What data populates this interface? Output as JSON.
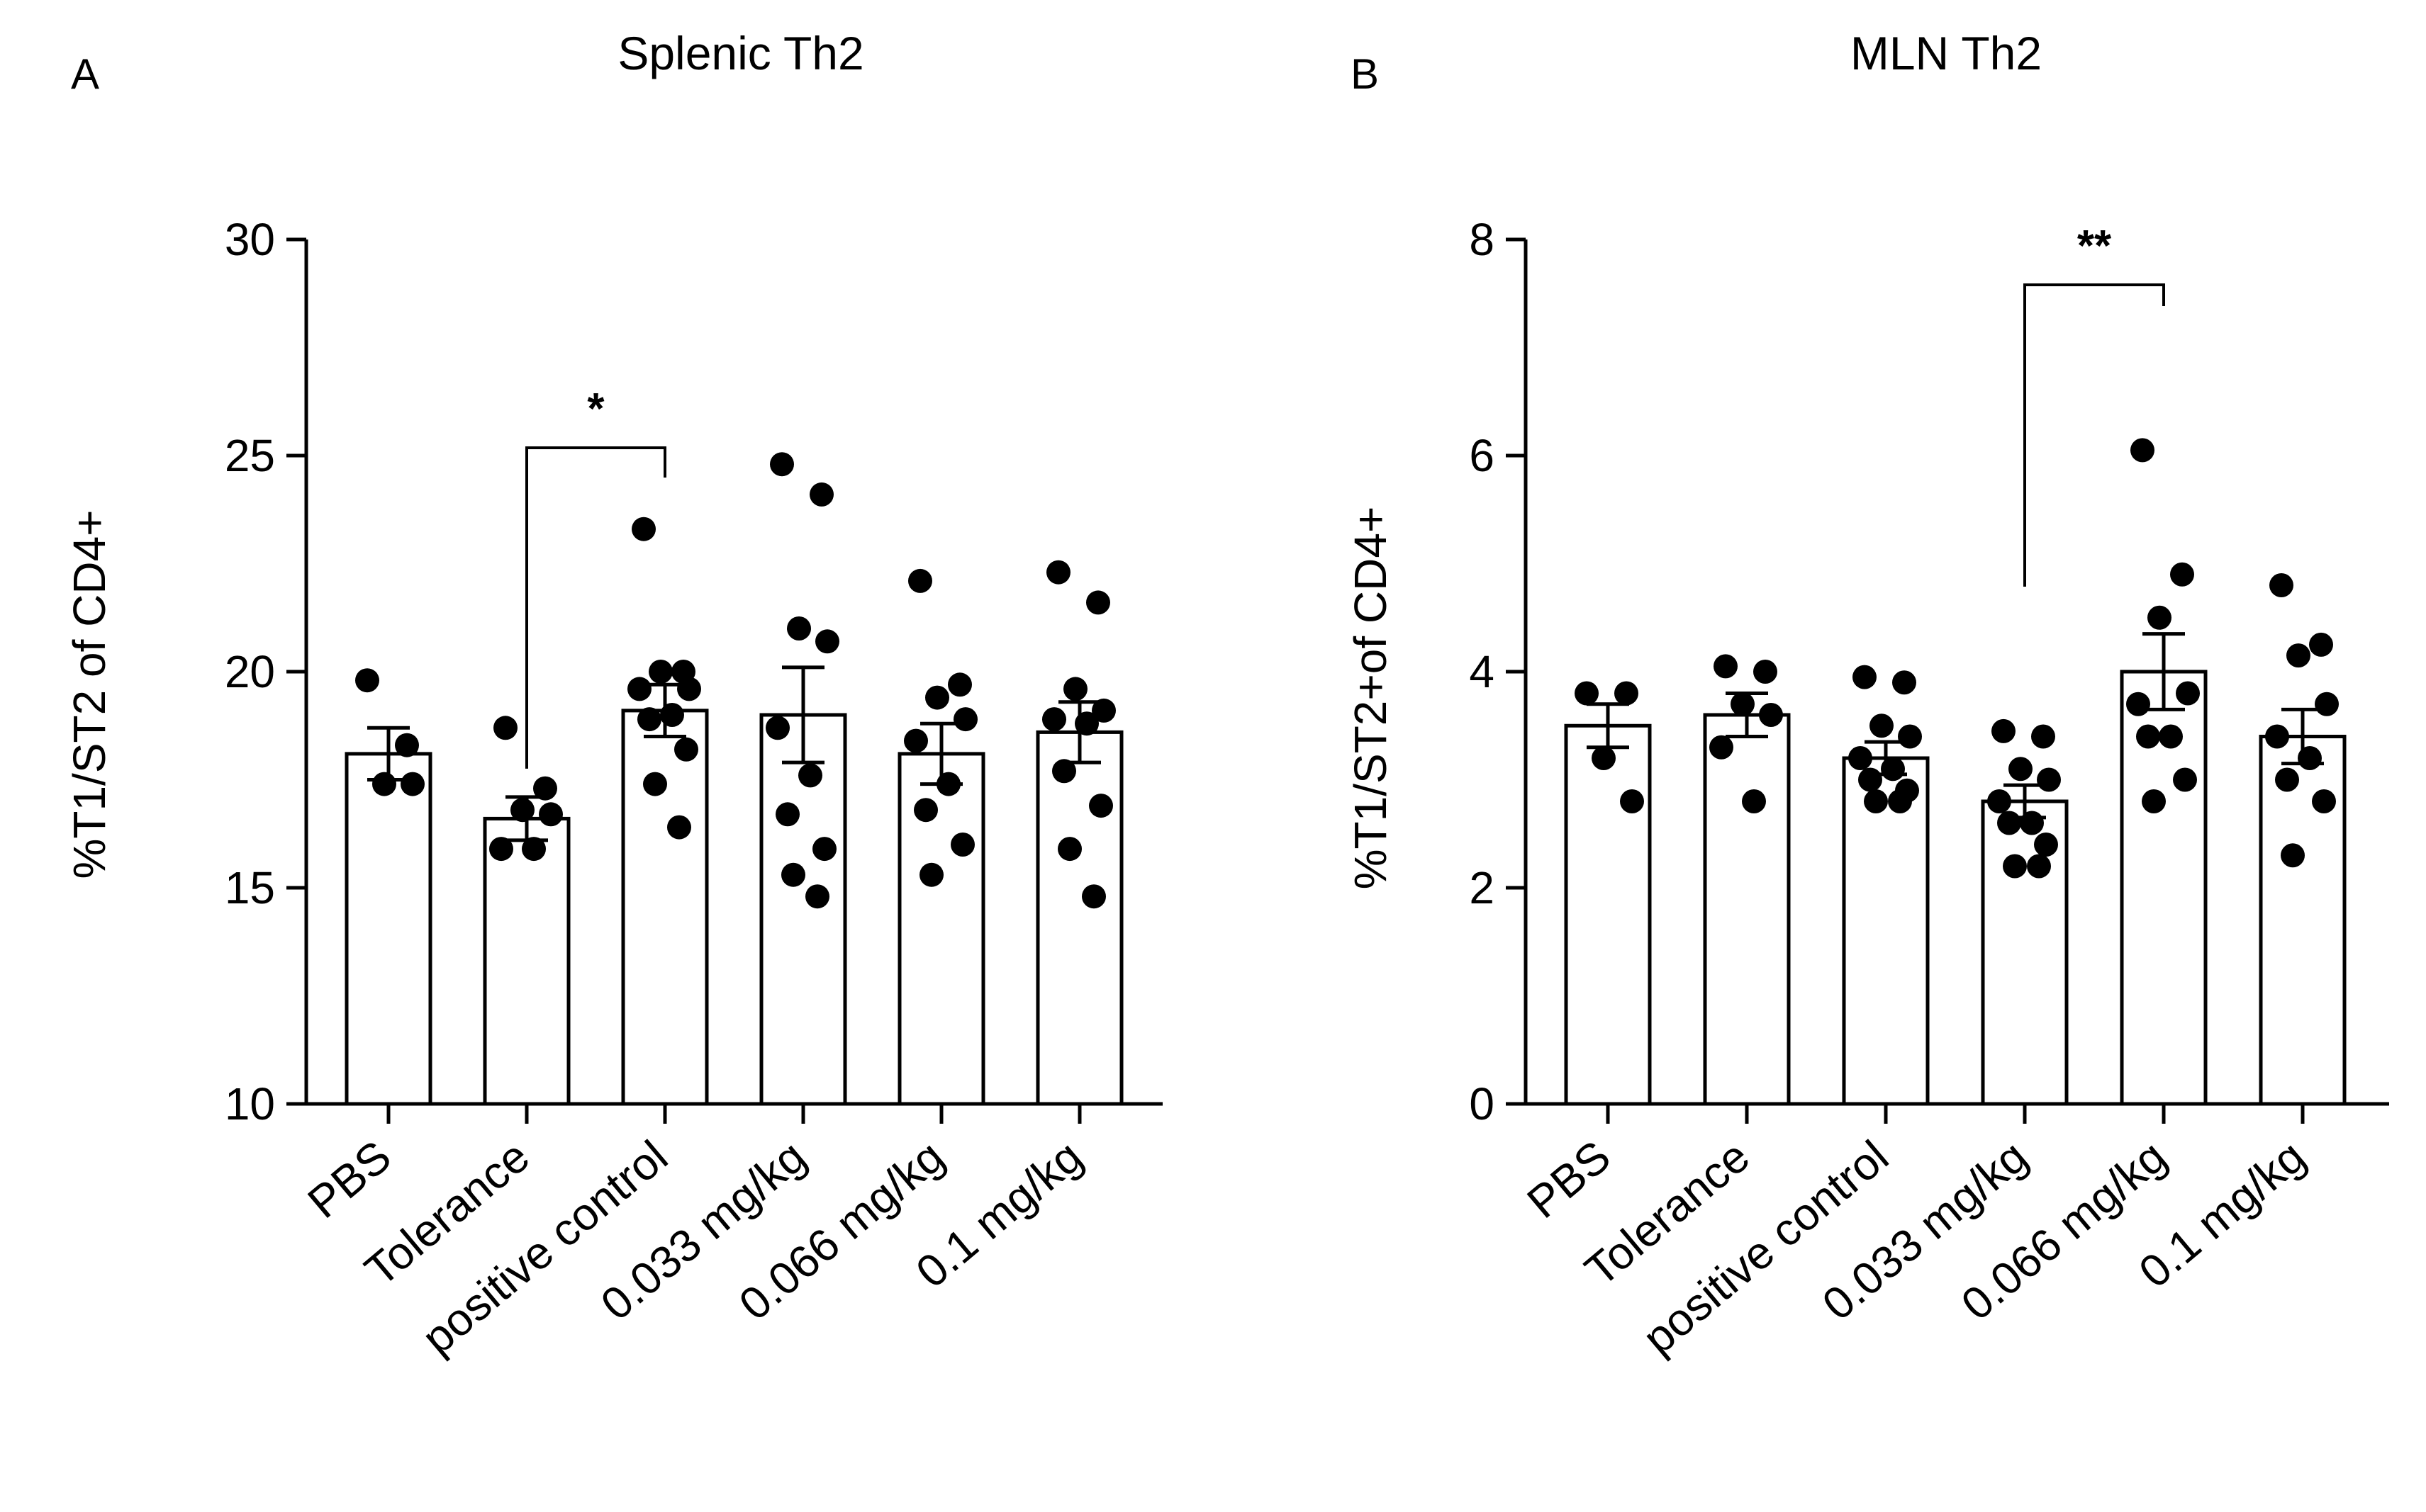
{
  "chart_data": [
    {
      "panel": "A",
      "type": "bar",
      "title": "Splenic Th2",
      "ylabel": "%T1/ST2 of CD4+",
      "xlabel": "",
      "ylim": [
        10,
        30
      ],
      "yticks": [
        10,
        15,
        20,
        25,
        30
      ],
      "categories": [
        "PBS",
        "Tolerance",
        "positive control",
        "0.033 mg/kg",
        "0.066 mg/kg",
        "0.1 mg/kg"
      ],
      "values": [
        18.1,
        16.6,
        19.1,
        19.0,
        18.1,
        18.6
      ],
      "sem": [
        0.6,
        0.5,
        0.6,
        1.1,
        0.7,
        0.7
      ],
      "points": [
        [
          19.8,
          18.3,
          17.4,
          17.4
        ],
        [
          18.7,
          17.3,
          16.8,
          16.7,
          15.9,
          15.9
        ],
        [
          23.3,
          20.0,
          20.0,
          19.6,
          19.6,
          19.0,
          18.9,
          18.2,
          17.4,
          16.4
        ],
        [
          24.8,
          24.1,
          21.0,
          20.7,
          18.7,
          17.6,
          16.7,
          15.9,
          15.3,
          14.8
        ],
        [
          22.1,
          19.7,
          19.4,
          18.9,
          18.4,
          17.4,
          16.8,
          16.0,
          15.3
        ],
        [
          22.3,
          21.6,
          19.6,
          19.1,
          18.9,
          18.8,
          17.7,
          16.9,
          15.9,
          14.8
        ]
      ],
      "significance": {
        "from": "Tolerance",
        "to": "positive control",
        "label": "*"
      }
    },
    {
      "panel": "B",
      "type": "bar",
      "title": "MLN Th2",
      "ylabel": "%T1/ST2+of CD4+",
      "xlabel": "",
      "ylim": [
        0,
        8
      ],
      "yticks": [
        0,
        2,
        4,
        6,
        8
      ],
      "categories": [
        "PBS",
        "Tolerance",
        "positive control",
        "0.033 mg/kg",
        "0.066 mg/kg",
        "0.1 mg/kg"
      ],
      "values": [
        3.5,
        3.6,
        3.2,
        2.8,
        4.0,
        3.4
      ],
      "sem": [
        0.2,
        0.2,
        0.15,
        0.15,
        0.35,
        0.25
      ],
      "points": [
        [
          3.8,
          3.8,
          3.2,
          2.8
        ],
        [
          4.05,
          4.0,
          3.7,
          3.6,
          3.3,
          2.8
        ],
        [
          3.95,
          3.9,
          3.5,
          3.4,
          3.2,
          3.1,
          3.0,
          2.9,
          2.8,
          2.8
        ],
        [
          3.45,
          3.4,
          3.1,
          3.0,
          2.8,
          2.6,
          2.6,
          2.4,
          2.2,
          2.2
        ],
        [
          6.05,
          4.9,
          4.5,
          3.8,
          3.7,
          3.4,
          3.4,
          3.0,
          2.8
        ],
        [
          4.8,
          4.25,
          4.15,
          3.7,
          3.4,
          3.2,
          3.0,
          2.8,
          2.3
        ]
      ],
      "significance": {
        "from": "0.033 mg/kg",
        "to": "0.066 mg/kg",
        "label": "**"
      }
    }
  ]
}
